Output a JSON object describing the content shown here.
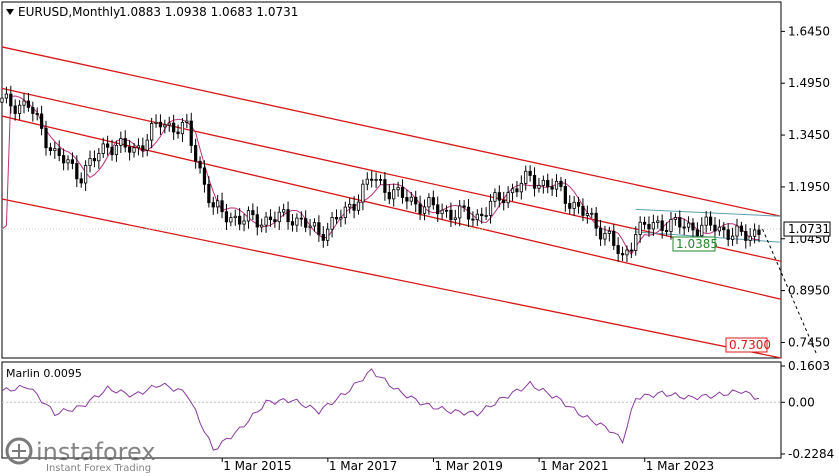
{
  "header": {
    "symbol_label": "EURUSD,Monthly",
    "ohlc_label": "1.0883 1.0938 1.0683 1.0731"
  },
  "indicator": {
    "label": "Marlin 0.0095"
  },
  "price_axis": {
    "ticks": [
      "1.6450",
      "1.4950",
      "1.3450",
      "1.1950",
      "1.0450",
      "0.8950",
      "0.7450"
    ],
    "current_price": "1.0731"
  },
  "indicator_axis": {
    "ticks": [
      "0.1603",
      "0.00",
      "-0.2284"
    ]
  },
  "time_axis": {
    "ticks": [
      "1 Mar 2015",
      "1 Mar 2017",
      "1 Mar 2019",
      "1 Mar 2021",
      "1 Mar 2023"
    ]
  },
  "annotations": {
    "support_label": "1.0385",
    "target_label": "0.7300"
  },
  "watermark": {
    "brand": "instaforex",
    "tagline": "Instant Forex Trading"
  },
  "colors": {
    "background": "#ffffff",
    "panel_bg": "#ececec",
    "channel_red": "#d81818",
    "ma_magenta": "#c0307a",
    "indicator_purple": "#8a3aa0",
    "teal_line": "#5aa0b0",
    "support_green": "#1f8a2a",
    "target_red": "#d81818",
    "candle": "#000000"
  },
  "chart_data": {
    "type": "candlestick",
    "symbol": "EURUSD",
    "timeframe": "Monthly",
    "last_bar": {
      "open": 1.0883,
      "high": 1.0938,
      "low": 1.0683,
      "close": 1.0731
    },
    "y_range": [
      0.7,
      1.73
    ],
    "x_range": [
      2011.0,
      2025.75
    ],
    "price_series": {
      "x": [
        2011.0,
        2011.5,
        2012.0,
        2012.5,
        2013.0,
        2013.5,
        2014.0,
        2014.5,
        2015.0,
        2015.5,
        2016.0,
        2016.5,
        2017.0,
        2017.5,
        2018.0,
        2018.5,
        2019.0,
        2019.5,
        2020.0,
        2020.5,
        2021.0,
        2021.5,
        2022.0,
        2022.5,
        2022.75,
        2023.0,
        2023.5,
        2024.0,
        2024.5,
        2025.0,
        2025.4
      ],
      "close": [
        1.44,
        1.43,
        1.29,
        1.23,
        1.32,
        1.3,
        1.38,
        1.36,
        1.13,
        1.1,
        1.1,
        1.11,
        1.06,
        1.12,
        1.22,
        1.17,
        1.14,
        1.12,
        1.11,
        1.17,
        1.22,
        1.19,
        1.12,
        1.05,
        0.98,
        1.07,
        1.09,
        1.08,
        1.08,
        1.05,
        1.0731
      ]
    },
    "channels": [
      {
        "name": "upper",
        "from": [
          2011.0,
          1.6
        ],
        "to": [
          2025.75,
          1.11
        ]
      },
      {
        "name": "mid-upper",
        "from": [
          2011.0,
          1.48
        ],
        "to": [
          2025.75,
          0.98
        ]
      },
      {
        "name": "mid",
        "from": [
          2011.0,
          1.4
        ],
        "to": [
          2025.75,
          0.87
        ]
      },
      {
        "name": "lower",
        "from": [
          2011.0,
          1.16
        ],
        "to": [
          2025.75,
          0.7
        ]
      }
    ],
    "support_level": 1.0385,
    "target_level": 0.73,
    "current_price": 1.0731,
    "indicator": {
      "name": "Marlin",
      "value": 0.0095,
      "y_range": [
        -0.2284,
        0.1603
      ],
      "x": [
        2011.0,
        2011.5,
        2012.0,
        2012.5,
        2013.0,
        2013.5,
        2014.0,
        2014.5,
        2015.0,
        2015.5,
        2016.0,
        2016.5,
        2017.0,
        2017.5,
        2018.0,
        2018.5,
        2019.0,
        2019.5,
        2020.0,
        2020.5,
        2021.0,
        2021.5,
        2022.0,
        2022.5,
        2022.75,
        2023.0,
        2023.5,
        2024.0,
        2024.5,
        2025.0,
        2025.4
      ],
      "values": [
        0.05,
        0.07,
        -0.05,
        -0.02,
        0.06,
        0.03,
        0.08,
        0.04,
        -0.21,
        -0.12,
        0.0,
        0.01,
        -0.04,
        0.04,
        0.14,
        0.05,
        -0.01,
        -0.04,
        -0.05,
        0.02,
        0.08,
        0.02,
        -0.06,
        -0.12,
        -0.17,
        0.02,
        0.04,
        0.02,
        0.03,
        0.05,
        0.0095
      ]
    }
  }
}
